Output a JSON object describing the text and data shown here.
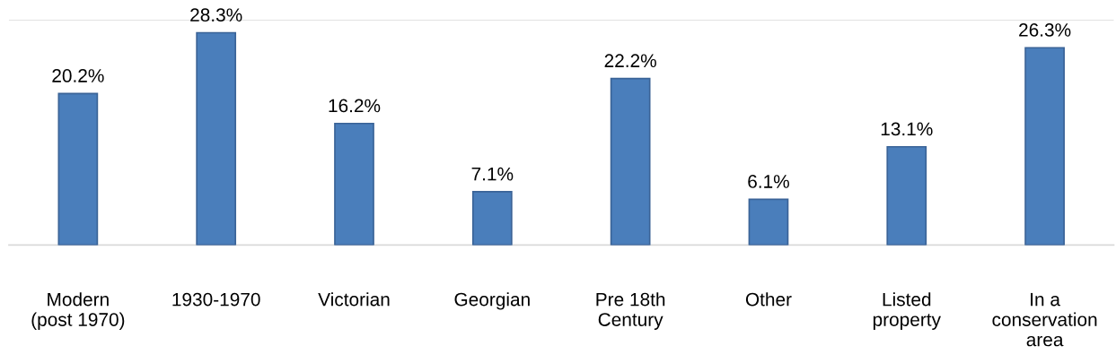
{
  "chart_data": {
    "type": "bar",
    "categories": [
      "Modern\n(post 1970)",
      "1930-1970",
      "Victorian",
      "Georgian",
      "Pre 18th\nCentury",
      "Other",
      "Listed\nproperty",
      "In a\nconservation\narea"
    ],
    "values": [
      20.2,
      28.3,
      16.2,
      7.1,
      22.2,
      6.1,
      13.1,
      26.3
    ],
    "value_labels": [
      "20.2%",
      "28.3%",
      "16.2%",
      "7.1%",
      "22.2%",
      "6.1%",
      "13.1%",
      "26.3%"
    ],
    "color": "#4a7ebb",
    "ylim": [
      0,
      30
    ],
    "ref_lines": [
      {
        "axis": "y",
        "value": 30,
        "color": "#d9d9d9"
      }
    ],
    "tick_labels": "x"
  }
}
